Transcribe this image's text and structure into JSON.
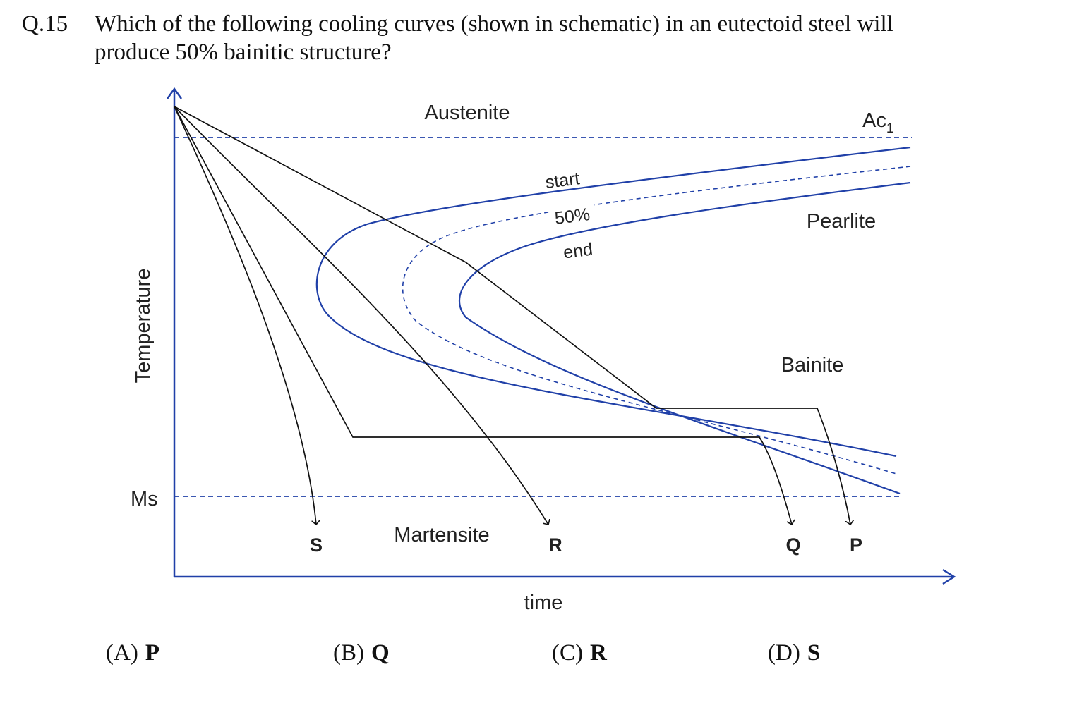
{
  "question": {
    "number": "Q.15",
    "text": "Which of the following cooling curves (shown in schematic) in an eutectoid steel will\nproduce 50% bainitic structure?"
  },
  "diagram": {
    "y_axis_label": "Temperature",
    "x_axis_label": "time",
    "ac1_label": "Ac",
    "ac1_subscript": "1",
    "ms_label": "Ms",
    "regions": {
      "austenite": "Austenite",
      "pearlite": "Pearlite",
      "bainite": "Bainite",
      "martensite": "Martensite"
    },
    "curve_labels": {
      "start": "start",
      "fifty": "50%",
      "end": "end"
    },
    "cooling_curves": {
      "S": "S",
      "R": "R",
      "Q": "Q",
      "P": "P"
    },
    "colors": {
      "ttt_curves": "#2040a8",
      "cooling_paths": "#111111"
    }
  },
  "options": [
    {
      "key": "(A)",
      "value": "P"
    },
    {
      "key": "(B)",
      "value": "Q"
    },
    {
      "key": "(C)",
      "value": "R"
    },
    {
      "key": "(D)",
      "value": "S"
    }
  ]
}
